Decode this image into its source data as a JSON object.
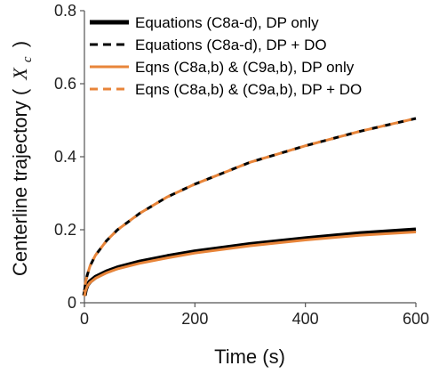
{
  "chart_data": {
    "type": "line",
    "xlabel": "Time (s)",
    "ylabel": "Centerline trajectory (",
    "ylabel_symbol": "X",
    "ylabel_subscript": "c",
    "ylabel_close": ")",
    "xlim": [
      0,
      600
    ],
    "ylim": [
      0,
      0.8
    ],
    "xticks": [
      0,
      200,
      400,
      600
    ],
    "yticks": [
      0,
      0.2,
      0.4,
      0.6,
      0.8
    ],
    "xtick_labels": [
      "0",
      "200",
      "400",
      "600"
    ],
    "ytick_labels": [
      "0",
      "0.2",
      "0.4",
      "0.6",
      "0.8"
    ],
    "grid": false,
    "legend_position": "top-left",
    "series": [
      {
        "name": "Equations (C8a-d), DP only",
        "color": "#000000",
        "style": "solid",
        "x": [
          0,
          2,
          5,
          10,
          20,
          40,
          60,
          100,
          150,
          200,
          300,
          400,
          500,
          600
        ],
        "y": [
          0.02,
          0.035,
          0.048,
          0.058,
          0.07,
          0.085,
          0.096,
          0.112,
          0.127,
          0.14,
          0.16,
          0.176,
          0.19,
          0.2
        ]
      },
      {
        "name": "Equations (C8a-d), DP + DO",
        "color": "#000000",
        "style": "dashed",
        "x": [
          0,
          2,
          5,
          10,
          20,
          40,
          60,
          100,
          150,
          200,
          300,
          400,
          500,
          600
        ],
        "y": [
          0.03,
          0.055,
          0.075,
          0.1,
          0.13,
          0.17,
          0.2,
          0.245,
          0.29,
          0.325,
          0.385,
          0.43,
          0.47,
          0.505
        ]
      },
      {
        "name": "Eqns (C8a,b) & (C9a,b), DP only",
        "color": "#E8853A",
        "style": "solid",
        "x": [
          0,
          2,
          5,
          10,
          20,
          40,
          60,
          100,
          150,
          200,
          300,
          400,
          500,
          600
        ],
        "y": [
          0.018,
          0.032,
          0.045,
          0.055,
          0.067,
          0.082,
          0.093,
          0.108,
          0.123,
          0.136,
          0.156,
          0.172,
          0.185,
          0.194
        ]
      },
      {
        "name": "Eqns (C8a,b) & (C9a,b), DP + DO",
        "color": "#E8853A",
        "style": "dashed",
        "x": [
          0,
          2,
          5,
          10,
          20,
          40,
          60,
          100,
          150,
          200,
          300,
          400,
          500,
          600
        ],
        "y": [
          0.03,
          0.055,
          0.075,
          0.1,
          0.13,
          0.17,
          0.2,
          0.245,
          0.29,
          0.325,
          0.385,
          0.43,
          0.47,
          0.505
        ]
      }
    ]
  }
}
